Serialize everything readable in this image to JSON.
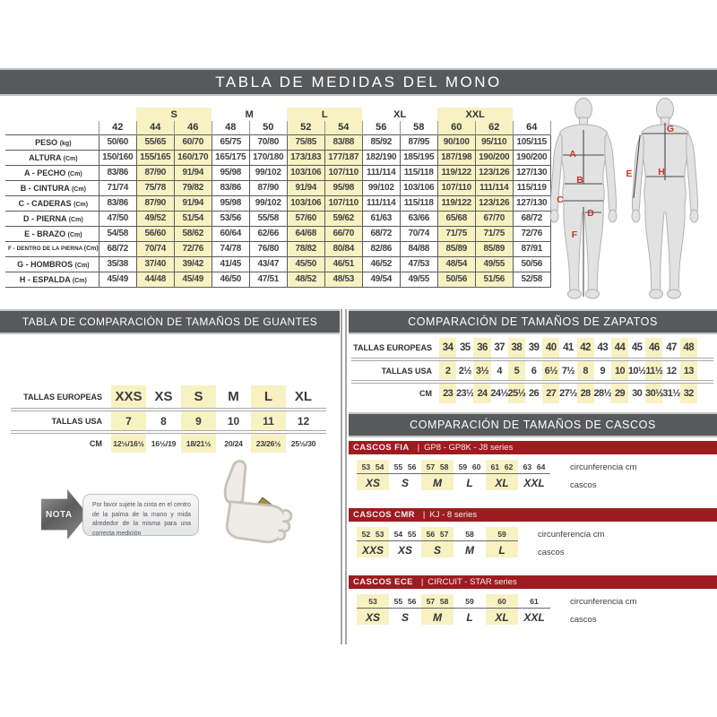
{
  "title": "TABLA DE MEDIDAS DEL MONO",
  "colors": {
    "header_bar": "#58595b",
    "series_bar": "#9d1c20",
    "highlight": "#f8f2c3"
  },
  "main_table": {
    "groups": [
      {
        "label": "",
        "span": 1,
        "highlight": false
      },
      {
        "label": "S",
        "span": 2,
        "highlight": true
      },
      {
        "label": "M",
        "span": 2,
        "highlight": false
      },
      {
        "label": "L",
        "span": 2,
        "highlight": true
      },
      {
        "label": "XL",
        "span": 2,
        "highlight": false
      },
      {
        "label": "XXL",
        "span": 2,
        "highlight": true
      },
      {
        "label": "",
        "span": 1,
        "highlight": false
      }
    ],
    "sizes": [
      "42",
      "44",
      "46",
      "48",
      "50",
      "52",
      "54",
      "56",
      "58",
      "60",
      "62",
      "64"
    ],
    "highlight_columns": [
      1,
      2,
      5,
      6,
      9,
      10
    ],
    "rows": [
      {
        "label": "PESO",
        "unit": "(kg)",
        "values": [
          "50/60",
          "55/65",
          "60/70",
          "65/75",
          "70/80",
          "75/85",
          "83/88",
          "85/92",
          "87/95",
          "90/100",
          "95/110",
          "105/115"
        ]
      },
      {
        "label": "ALTURA",
        "unit": "(Cm)",
        "values": [
          "150/160",
          "155/165",
          "160/170",
          "165/175",
          "170/180",
          "173/183",
          "177/187",
          "182/190",
          "185/195",
          "187/198",
          "190/200",
          "190/200"
        ]
      },
      {
        "label": "A - PECHO",
        "unit": "(Cm)",
        "values": [
          "83/86",
          "87/90",
          "91/94",
          "95/98",
          "99/102",
          "103/106",
          "107/110",
          "111/114",
          "115/118",
          "119/122",
          "123/126",
          "127/130"
        ]
      },
      {
        "label": "B - CINTURA",
        "unit": "(Cm)",
        "values": [
          "71/74",
          "75/78",
          "79/82",
          "83/86",
          "87/90",
          "91/94",
          "95/98",
          "99/102",
          "103/106",
          "107/110",
          "111/114",
          "115/119"
        ]
      },
      {
        "label": "C - CADERAS",
        "unit": "(Cm)",
        "values": [
          "83/86",
          "87/90",
          "91/94",
          "95/98",
          "99/102",
          "103/106",
          "107/110",
          "111/114",
          "115/118",
          "119/122",
          "123/126",
          "127/130"
        ]
      },
      {
        "label": "D - PIERNA",
        "unit": "(Cm)",
        "values": [
          "47/50",
          "49/52",
          "51/54",
          "53/56",
          "55/58",
          "57/60",
          "59/62",
          "61/63",
          "63/66",
          "65/68",
          "67/70",
          "68/72"
        ]
      },
      {
        "label": "E - BRAZO",
        "unit": "(Cm)",
        "values": [
          "54/58",
          "56/60",
          "58/62",
          "60/64",
          "62/66",
          "64/68",
          "66/70",
          "68/72",
          "70/74",
          "71/75",
          "71/75",
          "72/76"
        ]
      },
      {
        "label": "F - DENTRO DE LA PIERNA",
        "unit": "(Cm)",
        "values": [
          "68/72",
          "70/74",
          "72/76",
          "74/78",
          "76/80",
          "78/82",
          "80/84",
          "82/86",
          "84/88",
          "85/89",
          "85/89",
          "87/91"
        ]
      },
      {
        "label": "G - HOMBROS",
        "unit": "(Cm)",
        "values": [
          "35/38",
          "37/40",
          "39/42",
          "41/45",
          "43/47",
          "45/50",
          "46/51",
          "46/52",
          "47/53",
          "48/54",
          "49/55",
          "50/56"
        ]
      },
      {
        "label": "H - ESPALDA",
        "unit": "(Cm)",
        "values": [
          "45/49",
          "44/48",
          "45/49",
          "46/50",
          "47/51",
          "48/52",
          "48/53",
          "49/54",
          "49/55",
          "50/56",
          "51/56",
          "52/58"
        ]
      }
    ]
  },
  "figures": {
    "front_markers": [
      "A",
      "B",
      "C",
      "D",
      "F"
    ],
    "back_markers": [
      "G",
      "E",
      "H"
    ]
  },
  "gloves": {
    "title": "TABLA DE COMPARACIÓN DE TAMAÑOS DE GUANTES",
    "highlight_columns": [
      0,
      2,
      4
    ],
    "rows": [
      {
        "label": "TALLAS EUROPEAS",
        "values": [
          "XXS",
          "XS",
          "S",
          "M",
          "L",
          "XL"
        ]
      },
      {
        "label": "TALLAS USA",
        "values": [
          "7",
          "8",
          "9",
          "10",
          "11",
          "12"
        ]
      },
      {
        "label": "CM",
        "values": [
          "12½/16½",
          "16½/19",
          "18/21½",
          "20/24",
          "23/26½",
          "25½/30"
        ]
      }
    ],
    "note_label": "NOTA",
    "note_text": "Por favor sujete la cinta en el centro de la palma de la mano y mida alrededor de la misma para una correcta medición"
  },
  "shoes": {
    "title": "COMPARACIÓN DE TAMAÑOS DE ZAPATOS",
    "highlight_columns": [
      0,
      2,
      4,
      6,
      8,
      10,
      12,
      14
    ],
    "rows": [
      {
        "label": "TALLAS EUROPEAS",
        "values": [
          "34",
          "35",
          "36",
          "37",
          "38",
          "39",
          "40",
          "41",
          "42",
          "43",
          "44",
          "45",
          "46",
          "47",
          "48"
        ]
      },
      {
        "label": "TALLAS USA",
        "values": [
          "2",
          "2½",
          "3½",
          "4",
          "5",
          "6",
          "6½",
          "7½",
          "8",
          "9",
          "10",
          "10½",
          "11½",
          "12",
          "13"
        ]
      },
      {
        "label": "CM",
        "values": [
          "23",
          "23½",
          "24",
          "24½",
          "25½",
          "26",
          "27",
          "27½",
          "28",
          "28½",
          "29",
          "30",
          "30½",
          "31½",
          "32"
        ]
      }
    ]
  },
  "helmets": {
    "title": "COMPARACIÓN DE TAMAÑOS DE CASCOS",
    "cm_label": "circunferencia cm",
    "sizes_label": "cascos",
    "sections": [
      {
        "name": "CASCOS FIA",
        "series": "GP8 - GP8K - J8 series",
        "groups": [
          {
            "size": "XS",
            "cms": [
              "53",
              "54"
            ],
            "highlight": true
          },
          {
            "size": "S",
            "cms": [
              "55",
              "56"
            ],
            "highlight": false
          },
          {
            "size": "M",
            "cms": [
              "57",
              "58"
            ],
            "highlight": true
          },
          {
            "size": "L",
            "cms": [
              "59",
              "60"
            ],
            "highlight": false
          },
          {
            "size": "XL",
            "cms": [
              "61",
              "62"
            ],
            "highlight": true
          },
          {
            "size": "XXL",
            "cms": [
              "63",
              "64"
            ],
            "highlight": false
          }
        ]
      },
      {
        "name": "CASCOS CMR",
        "series": "KJ - 8 series",
        "groups": [
          {
            "size": "XXS",
            "cms": [
              "52",
              "53"
            ],
            "highlight": true
          },
          {
            "size": "XS",
            "cms": [
              "54",
              "55"
            ],
            "highlight": false
          },
          {
            "size": "S",
            "cms": [
              "56",
              "57"
            ],
            "highlight": true
          },
          {
            "size": "M",
            "cms": [
              "58"
            ],
            "highlight": false
          },
          {
            "size": "L",
            "cms": [
              "59"
            ],
            "highlight": true
          }
        ]
      },
      {
        "name": "CASCOS ECE",
        "series": "CIRCUIT - STAR series",
        "groups": [
          {
            "size": "XS",
            "cms": [
              "53"
            ],
            "highlight": true
          },
          {
            "size": "S",
            "cms": [
              "55",
              "56"
            ],
            "highlight": false
          },
          {
            "size": "M",
            "cms": [
              "57",
              "58"
            ],
            "highlight": true
          },
          {
            "size": "L",
            "cms": [
              "59"
            ],
            "highlight": false
          },
          {
            "size": "XL",
            "cms": [
              "60"
            ],
            "highlight": true
          },
          {
            "size": "XXL",
            "cms": [
              "61"
            ],
            "highlight": false
          }
        ]
      }
    ]
  }
}
